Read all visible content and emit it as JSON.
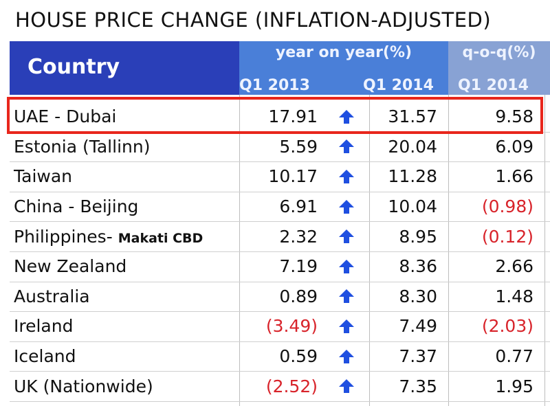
{
  "title": "HOUSE PRICE CHANGE (INFLATION-ADJUSTED)",
  "header": {
    "country": "Country",
    "yoy": "year on year(%)",
    "qoq": "q-o-q(%)",
    "col_y13": "Q1 2013",
    "col_y14": "Q1 2014",
    "col_q14": "Q1 2014"
  },
  "colors": {
    "header_dark": "#2a3fb8",
    "header_mid": "#4a7fd8",
    "header_light": "#88a2d4",
    "negative": "#d8232a",
    "arrow": "#1f4fe0",
    "highlight": "#e8261c"
  },
  "chart_data": {
    "type": "table",
    "title": "HOUSE PRICE CHANGE (INFLATION-ADJUSTED)",
    "columns": [
      "Country",
      "year on year(%) Q1 2013",
      "year on year(%) Q1 2014",
      "q-o-q(%) Q1 2014"
    ],
    "highlighted_row": 0,
    "rows": [
      {
        "country": "UAE - Dubai",
        "sub": "",
        "y13": "17.91",
        "y14": "31.57",
        "q14": "9.58"
      },
      {
        "country": "Estonia (Tallinn)",
        "sub": "",
        "y13": "5.59",
        "y14": "20.04",
        "q14": "6.09"
      },
      {
        "country": "Taiwan",
        "sub": "",
        "y13": "10.17",
        "y14": "11.28",
        "q14": "1.66"
      },
      {
        "country": "China - Beijing",
        "sub": "",
        "y13": "6.91",
        "y14": "10.04",
        "q14": "(0.98)"
      },
      {
        "country": "Philippines-",
        "sub": "Makati CBD",
        "y13": "2.32",
        "y14": "8.95",
        "q14": "(0.12)"
      },
      {
        "country": "New Zealand",
        "sub": "",
        "y13": "7.19",
        "y14": "8.36",
        "q14": "2.66"
      },
      {
        "country": "Australia",
        "sub": "",
        "y13": "0.89",
        "y14": "8.30",
        "q14": "1.48"
      },
      {
        "country": "Ireland",
        "sub": "",
        "y13": "(3.49)",
        "y14": "7.49",
        "q14": "(2.03)"
      },
      {
        "country": "Iceland",
        "sub": "",
        "y13": "0.59",
        "y14": "7.37",
        "q14": "0.77"
      },
      {
        "country": "UK (Nationwide)",
        "sub": "",
        "y13": "(2.52)",
        "y14": "7.35",
        "q14": "1.95"
      }
    ]
  }
}
